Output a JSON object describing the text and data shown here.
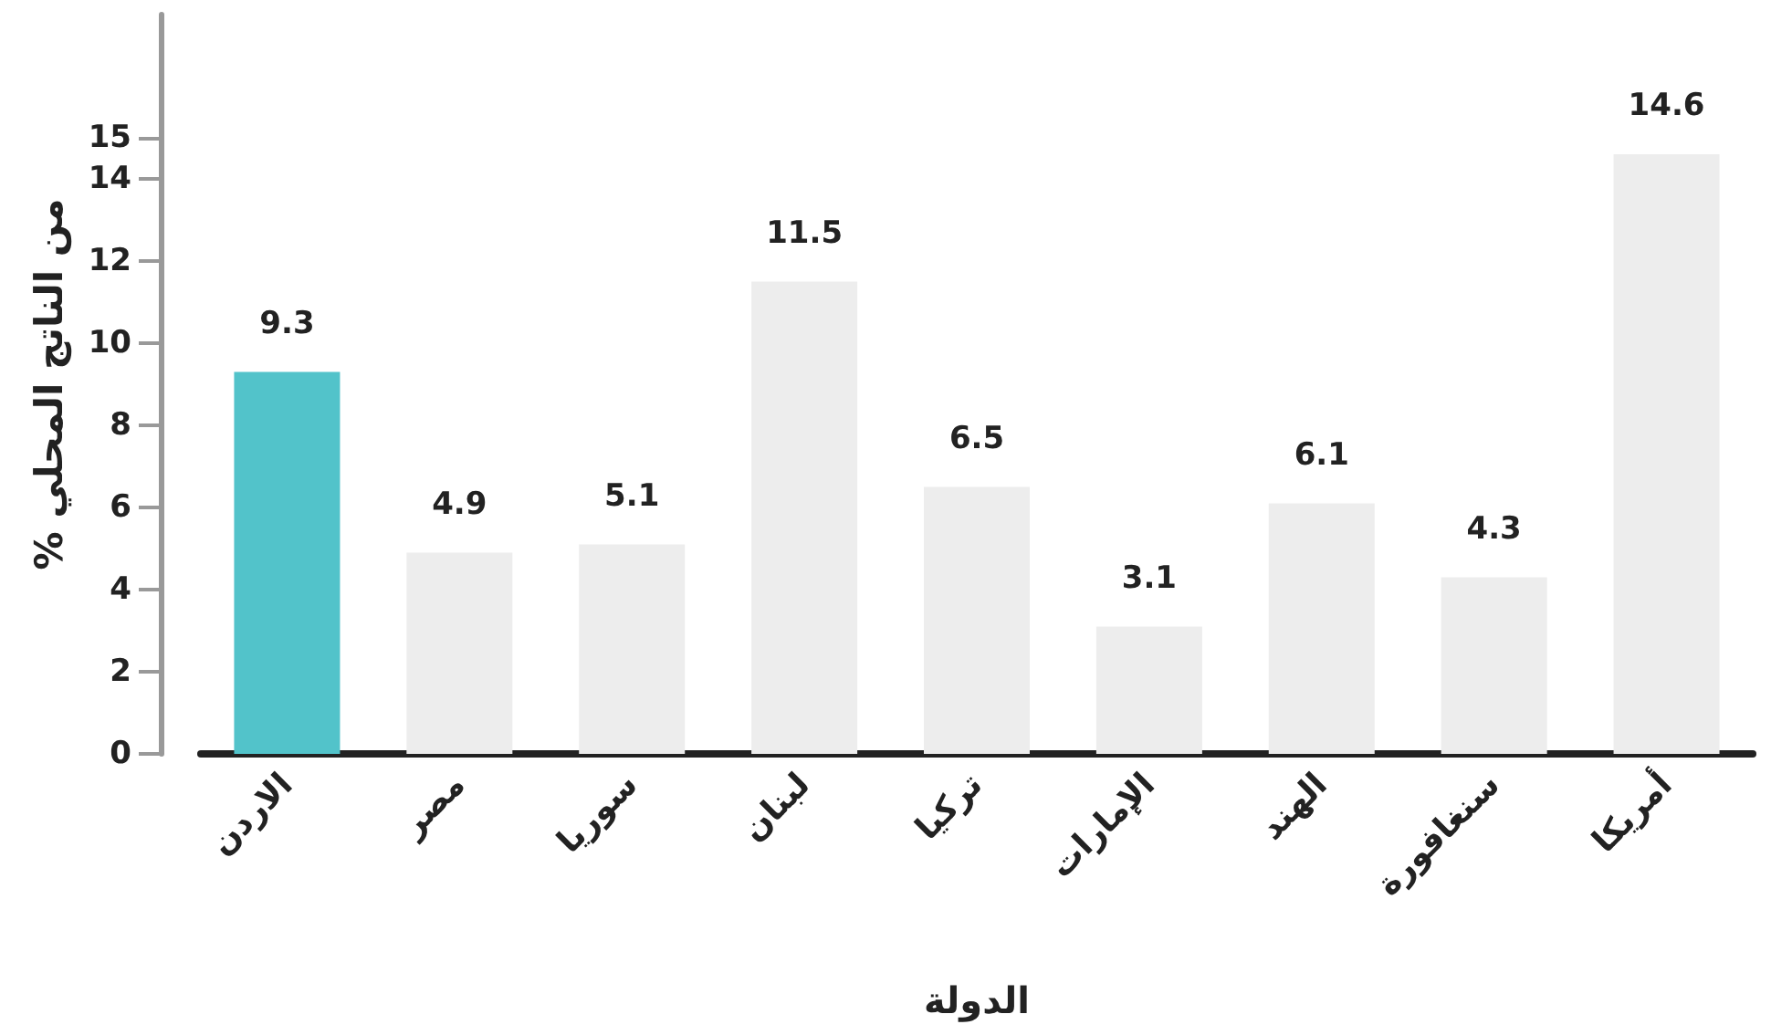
{
  "chart_data": {
    "type": "bar",
    "categories": [
      "الاردن",
      "مصر",
      "سوريا",
      "لبنان",
      "تركيا",
      "الإمارات",
      "الهند",
      "سنغافورة",
      "أمريكا"
    ],
    "values": [
      9.3,
      4.9,
      5.1,
      11.5,
      6.5,
      3.1,
      6.1,
      4.3,
      14.6
    ],
    "colors": [
      "#52c3ca",
      "#ededed",
      "#ededed",
      "#ededed",
      "#ededed",
      "#ededed",
      "#ededed",
      "#ededed",
      "#ededed"
    ],
    "xlabel": "الدولة",
    "ylabel": "% من الناتج المحلي",
    "ylim": [
      0,
      18
    ],
    "yticks": [
      0,
      2,
      4,
      6,
      8,
      10,
      12,
      14,
      15
    ],
    "data_labels": true,
    "grid": false
  }
}
